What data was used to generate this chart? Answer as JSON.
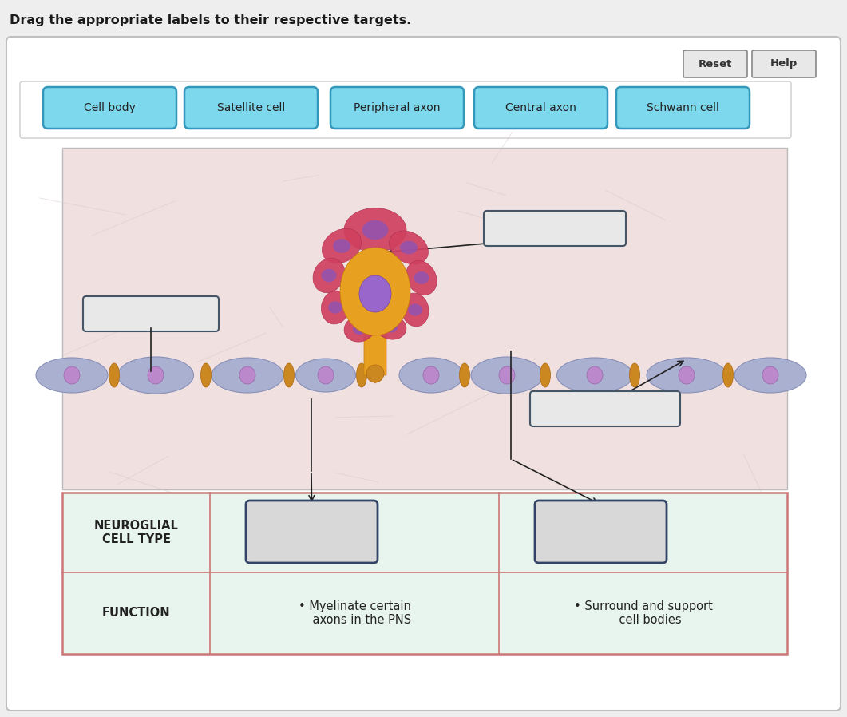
{
  "title": "Drag the appropriate labels to their respective targets.",
  "panel_bg": "#ffffff",
  "image_bg_color": "#f0e0e0",
  "table_bg": "#e8f5ee",
  "label_buttons": [
    "Cell body",
    "Satellite cell",
    "Peripheral axon",
    "Central axon",
    "Schwann cell"
  ],
  "label_btn_color": "#7dd8ee",
  "label_btn_edge": "#3399bb",
  "reset_help_buttons": [
    "Reset",
    "Help"
  ],
  "table_border_color": "#cc7777",
  "table_header_col1": "NEUROGLIAL\nCELL TYPE",
  "table_header_col2": "FUNCTION",
  "table_func1": "• Myelinate certain\n    axons in the PNS",
  "table_func2": "• Surround and support\n    cell bodies",
  "arrow_color": "#222222",
  "nerve_color": "#aab0d0",
  "nerve_edge": "#8890b8",
  "node_color": "#cc8820",
  "cell_body_color": "#e8a020",
  "satellite_color": "#d04060",
  "nucleus_color": "#9966bb",
  "empty_box_fill": "#e8e8e8",
  "empty_box_edge": "#445566",
  "outer_border": "#c0c0c0",
  "btn_section_border": "#cccccc"
}
